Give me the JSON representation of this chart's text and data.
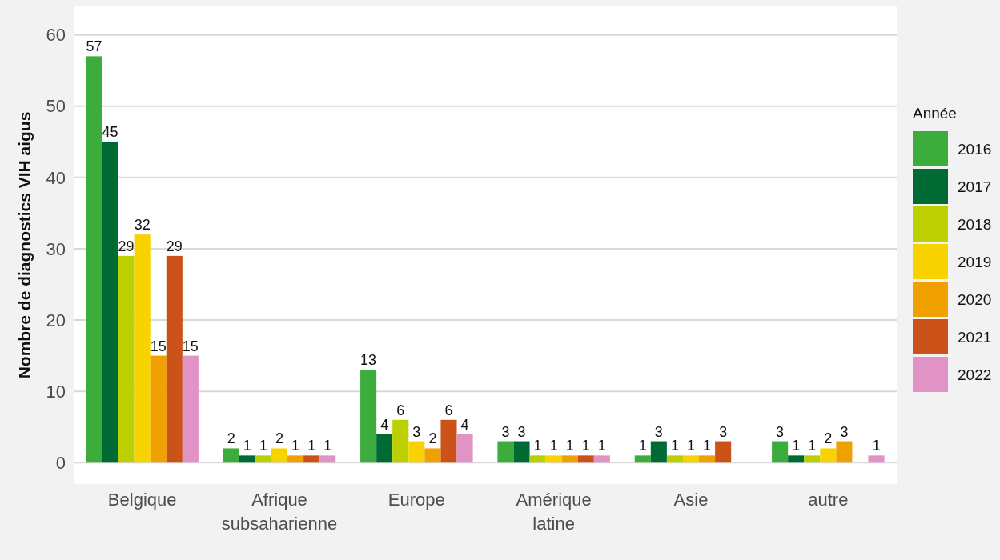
{
  "chart_data": {
    "type": "bar",
    "ylabel": "Nombre de diagnostics VIH aigus",
    "legend_title": "Année",
    "categories": [
      "Belgique",
      "Afrique\nsubsaharienne",
      "Europe",
      "Amérique\nlatine",
      "Asie",
      "autre"
    ],
    "series": [
      {
        "name": "2016",
        "color": "#3cad3c",
        "values": [
          57,
          2,
          13,
          3,
          1,
          3
        ]
      },
      {
        "name": "2017",
        "color": "#006a35",
        "values": [
          45,
          1,
          4,
          3,
          3,
          1
        ]
      },
      {
        "name": "2018",
        "color": "#bccf00",
        "values": [
          29,
          1,
          6,
          1,
          1,
          1
        ]
      },
      {
        "name": "2019",
        "color": "#f8d300",
        "values": [
          32,
          2,
          3,
          1,
          1,
          2
        ]
      },
      {
        "name": "2020",
        "color": "#f0a000",
        "values": [
          15,
          1,
          2,
          1,
          1,
          3
        ]
      },
      {
        "name": "2021",
        "color": "#cb5219",
        "values": [
          29,
          1,
          6,
          1,
          3,
          null
        ]
      },
      {
        "name": "2022",
        "color": "#e193c6",
        "values": [
          15,
          1,
          4,
          1,
          null,
          1
        ]
      }
    ],
    "ylim": [
      -3,
      64
    ],
    "yticks": [
      0,
      10,
      20,
      30,
      40,
      50,
      60
    ],
    "grid": "y",
    "legend": "right",
    "data_labels": true
  }
}
